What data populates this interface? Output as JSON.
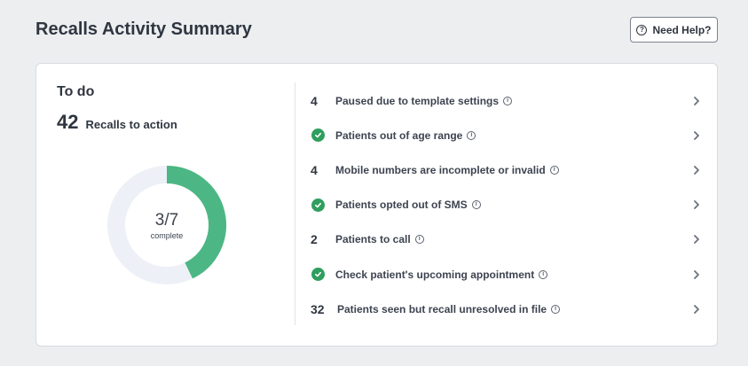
{
  "header": {
    "title": "Recalls Activity Summary",
    "help_label": "Need Help?"
  },
  "todo": {
    "title": "To do",
    "recalls_count": "42",
    "recalls_label": "Recalls to action",
    "progress": {
      "value_text": "3/7",
      "sub_text": "complete",
      "completed": 3,
      "total": 7,
      "fill_color": "#4cb784",
      "track_color": "#eef0f7"
    }
  },
  "items": [
    {
      "count": "4",
      "done": false,
      "label": "Paused due to template settings"
    },
    {
      "count": "",
      "done": true,
      "label": "Patients out of age range"
    },
    {
      "count": "4",
      "done": false,
      "label": "Mobile numbers are incomplete or invalid"
    },
    {
      "count": "",
      "done": true,
      "label": "Patients opted out of SMS"
    },
    {
      "count": "2",
      "done": false,
      "label": "Patients to call"
    },
    {
      "count": "",
      "done": true,
      "label": "Check patient's upcoming appointment"
    },
    {
      "count": "32",
      "done": false,
      "label": "Patients seen but recall unresolved in file"
    }
  ]
}
